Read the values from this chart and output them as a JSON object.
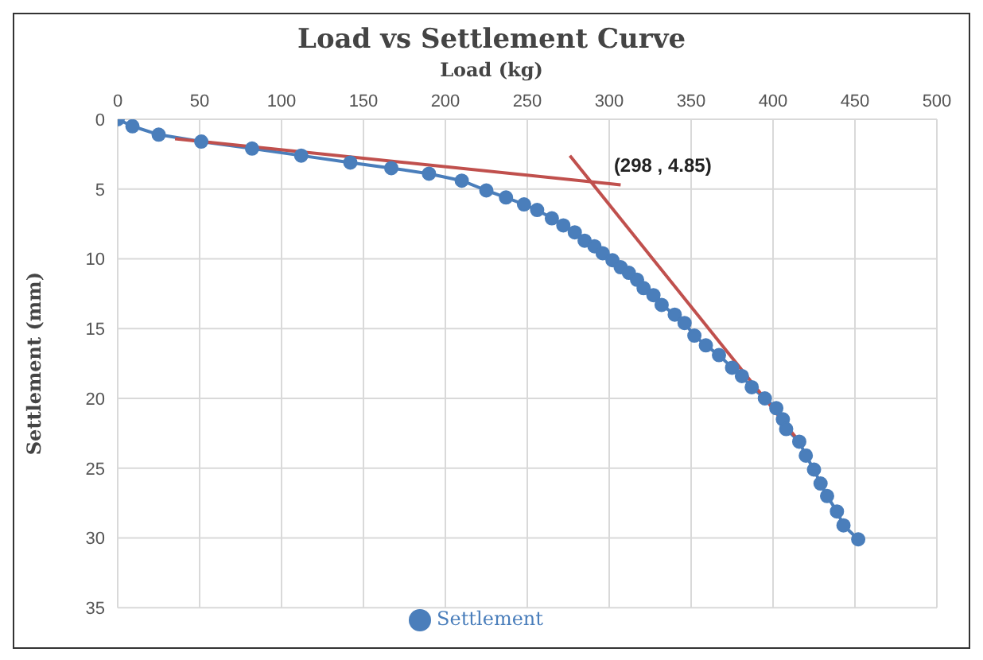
{
  "chart_data": {
    "type": "line",
    "title": "Load vs Settlement Curve",
    "xlabel": "Load (kg)",
    "ylabel": "Settlement (mm)",
    "xlim": [
      0,
      500
    ],
    "xticks": [
      0,
      50,
      100,
      150,
      200,
      250,
      300,
      350,
      400,
      450,
      500
    ],
    "ylim": [
      35,
      0
    ],
    "yticks": [
      0,
      5,
      10,
      15,
      20,
      25,
      30,
      35
    ],
    "grid": true,
    "legend": "bottom",
    "marker": "circle",
    "annotations": [
      {
        "text": "(298 , 4.85)",
        "x": 298,
        "y": 4.85
      }
    ],
    "series": [
      {
        "name": "Settlement",
        "color": "#4a7ebb",
        "x": [
          0,
          9,
          25,
          51,
          82,
          112,
          142,
          167,
          190,
          210,
          225,
          237,
          248,
          256,
          265,
          272,
          279,
          285,
          291,
          296,
          302,
          307,
          312,
          317,
          321,
          327,
          332,
          340,
          346,
          352,
          359,
          367,
          375,
          381,
          387,
          395,
          402,
          406,
          408,
          416,
          420,
          425,
          429,
          433,
          439,
          443,
          452
        ],
        "values": [
          0,
          0.5,
          1.1,
          1.6,
          2.1,
          2.6,
          3.1,
          3.5,
          3.9,
          4.4,
          5.1,
          5.6,
          6.1,
          6.5,
          7.1,
          7.6,
          8.1,
          8.7,
          9.1,
          9.6,
          10.1,
          10.6,
          11,
          11.5,
          12.1,
          12.6,
          13.3,
          14,
          14.6,
          15.5,
          16.2,
          16.9,
          17.8,
          18.4,
          19.2,
          20,
          20.7,
          21.5,
          22.2,
          23.1,
          24.1,
          25.1,
          26.1,
          27,
          28.1,
          29.1,
          30.1
        ]
      },
      {
        "type": "line",
        "color": "#c0504d",
        "marker": "none",
        "x": [
          35,
          307
        ],
        "values": [
          1.4,
          4.7
        ]
      },
      {
        "type": "line",
        "color": "#c0504d",
        "marker": "none",
        "x": [
          276,
          414
        ],
        "values": [
          2.6,
          22.8
        ]
      }
    ]
  }
}
